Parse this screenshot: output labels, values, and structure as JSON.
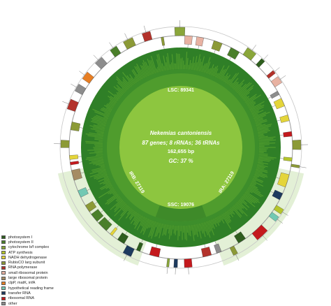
{
  "genome": {
    "species": "Nekemias cantoniensis",
    "stats": "87 genes; 8 rRNAs; 36 tRNAs",
    "length": "162,655 bp",
    "gc": "GC: 37 %"
  },
  "regions": {
    "lsc": "LSC: 89341",
    "ssc": "SSC: 19076",
    "ira": "IRA: 27119",
    "irb": "IRB: 27119"
  },
  "legend": [
    {
      "label": "photosystem I",
      "color": "#2e5e1e"
    },
    {
      "label": "photosystem II",
      "color": "#4a7f2a"
    },
    {
      "label": "cytochrome b/f complex",
      "color": "#8aa63a"
    },
    {
      "label": "ATP synthesis",
      "color": "#b5c62b"
    },
    {
      "label": "NADH dehydrogenase",
      "color": "#e4d53a"
    },
    {
      "label": "RubisCO larg subunit",
      "color": "#8c9a37"
    },
    {
      "label": "RNA polymerase",
      "color": "#b3322b"
    },
    {
      "label": "small ribosomal protein",
      "color": "#e8b2a2"
    },
    {
      "label": "large ribosomal protein",
      "color": "#a58c63"
    },
    {
      "label": "clpP, matK, infA",
      "color": "#e77e23"
    },
    {
      "label": "hypothetical reading frame",
      "color": "#72c9b3"
    },
    {
      "label": "transfer RNA",
      "color": "#1d3a5e"
    },
    {
      "label": "ribosomal RNA",
      "color": "#c4191d"
    },
    {
      "label": "other",
      "color": "#8d8d8d"
    }
  ],
  "colors": {
    "outer_ring": "#ffffff",
    "ir_shade": "#e3f0d6",
    "gc_dark": "#2f7f27",
    "gc_mid": "#4f9c2d",
    "inner_fill": "#8dc63f",
    "inner_ring": "#5aa52e"
  }
}
